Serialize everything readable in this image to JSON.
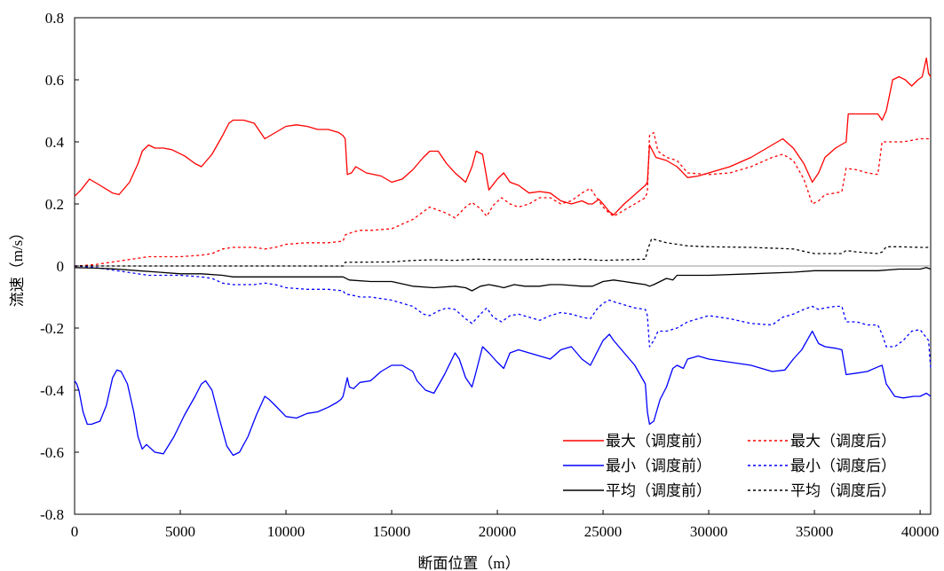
{
  "chart_data": {
    "type": "line",
    "xlabel": "断面位置（m）",
    "ylabel": "流速（m/s）",
    "xlim": [
      0,
      40500
    ],
    "ylim": [
      -0.8,
      0.8
    ],
    "xticks": [
      0,
      5000,
      10000,
      15000,
      20000,
      25000,
      30000,
      35000,
      40000
    ],
    "xtick_labels": [
      "0",
      "5000",
      "10000",
      "15000",
      "20000",
      "25000",
      "30000",
      "35000",
      "40000"
    ],
    "yticks": [
      -0.8,
      -0.6,
      -0.4,
      -0.2,
      0,
      0.2,
      0.4,
      0.6,
      0.8
    ],
    "ytick_labels": [
      "-0.8",
      "-0.6",
      "-0.4",
      "-0.2",
      "0",
      "0.2",
      "0.4",
      "0.6",
      "0.8"
    ],
    "grid": false,
    "zero_line": true,
    "legend_position": "bottom-right",
    "colors": {
      "red": "#ff0000",
      "blue": "#0000ff",
      "black": "#000000",
      "zero": "#999999"
    },
    "series": [
      {
        "name": "最大（调度前）",
        "color": "#ff0000",
        "dash": "solid",
        "x": [
          0,
          300,
          700,
          1200,
          1800,
          2100,
          2600,
          3000,
          3200,
          3500,
          3800,
          4200,
          4600,
          5200,
          5700,
          6000,
          6500,
          7000,
          7300,
          7500,
          8000,
          8500,
          9000,
          9500,
          10000,
          10500,
          11000,
          11500,
          12000,
          12500,
          12700,
          12800,
          12900,
          13100,
          13300,
          13800,
          14500,
          15000,
          15500,
          16000,
          16500,
          16800,
          17200,
          17600,
          18000,
          18500,
          18800,
          19000,
          19300,
          19600,
          20000,
          20300,
          20600,
          21000,
          21500,
          22000,
          22500,
          23000,
          23500,
          24000,
          24300,
          24500,
          24800,
          25000,
          25300,
          25500,
          26000,
          26500,
          27000,
          27100,
          27200,
          27500,
          28000,
          28500,
          29000,
          29500,
          30000,
          31000,
          32000,
          33000,
          33500,
          34000,
          34500,
          34900,
          35200,
          35500,
          36000,
          36500,
          36600,
          37000,
          38000,
          38200,
          38400,
          38700,
          39000,
          39300,
          39600,
          39900,
          40100,
          40300,
          40400,
          40500
        ],
        "y": [
          0.225,
          0.245,
          0.28,
          0.26,
          0.235,
          0.23,
          0.27,
          0.33,
          0.37,
          0.39,
          0.38,
          0.38,
          0.375,
          0.355,
          0.33,
          0.32,
          0.36,
          0.42,
          0.46,
          0.47,
          0.47,
          0.46,
          0.41,
          0.43,
          0.45,
          0.455,
          0.45,
          0.44,
          0.44,
          0.43,
          0.42,
          0.41,
          0.295,
          0.3,
          0.32,
          0.3,
          0.29,
          0.27,
          0.28,
          0.31,
          0.35,
          0.37,
          0.37,
          0.33,
          0.3,
          0.27,
          0.32,
          0.37,
          0.36,
          0.245,
          0.28,
          0.3,
          0.27,
          0.26,
          0.235,
          0.24,
          0.235,
          0.21,
          0.2,
          0.21,
          0.2,
          0.2,
          0.215,
          0.2,
          0.175,
          0.165,
          0.2,
          0.23,
          0.26,
          0.27,
          0.39,
          0.35,
          0.34,
          0.32,
          0.285,
          0.29,
          0.3,
          0.32,
          0.35,
          0.39,
          0.41,
          0.38,
          0.33,
          0.27,
          0.3,
          0.35,
          0.38,
          0.4,
          0.49,
          0.49,
          0.49,
          0.47,
          0.5,
          0.6,
          0.61,
          0.6,
          0.58,
          0.6,
          0.61,
          0.67,
          0.62,
          0.61
        ]
      },
      {
        "name": "最大（调度后）",
        "color": "#ff0000",
        "dash": "dotted",
        "x": [
          0,
          500,
          1000,
          1500,
          2000,
          2500,
          3000,
          3500,
          4000,
          5000,
          6000,
          6500,
          7000,
          7500,
          8000,
          8500,
          9000,
          9500,
          10000,
          11000,
          12000,
          12700,
          12800,
          13200,
          13500,
          14000,
          15000,
          16000,
          16500,
          16800,
          17200,
          17600,
          18000,
          18500,
          18800,
          19200,
          19500,
          19800,
          20200,
          20600,
          21000,
          21500,
          22000,
          22500,
          23000,
          23500,
          24000,
          24400,
          24700,
          25000,
          25300,
          25500,
          26000,
          26500,
          27000,
          27100,
          27200,
          27400,
          27600,
          28000,
          28500,
          29000,
          30000,
          31000,
          32000,
          33000,
          33500,
          34000,
          34500,
          34900,
          35200,
          35500,
          36000,
          36300,
          36500,
          37000,
          37500,
          38000,
          38200,
          38400,
          38800,
          39200,
          39600,
          40000,
          40400,
          40500
        ],
        "y": [
          0,
          0.002,
          0.005,
          0.01,
          0.015,
          0.02,
          0.025,
          0.03,
          0.03,
          0.03,
          0.035,
          0.04,
          0.055,
          0.06,
          0.06,
          0.06,
          0.055,
          0.06,
          0.07,
          0.075,
          0.075,
          0.08,
          0.1,
          0.11,
          0.115,
          0.115,
          0.12,
          0.15,
          0.175,
          0.19,
          0.18,
          0.17,
          0.155,
          0.19,
          0.205,
          0.185,
          0.16,
          0.195,
          0.22,
          0.2,
          0.19,
          0.2,
          0.22,
          0.22,
          0.2,
          0.21,
          0.235,
          0.25,
          0.22,
          0.19,
          0.17,
          0.16,
          0.18,
          0.2,
          0.22,
          0.24,
          0.42,
          0.43,
          0.37,
          0.35,
          0.34,
          0.3,
          0.295,
          0.3,
          0.32,
          0.35,
          0.36,
          0.34,
          0.28,
          0.2,
          0.21,
          0.23,
          0.235,
          0.24,
          0.315,
          0.31,
          0.3,
          0.295,
          0.4,
          0.4,
          0.4,
          0.4,
          0.405,
          0.41,
          0.41,
          0.41
        ]
      },
      {
        "name": "最小（调度前）",
        "color": "#0000ff",
        "dash": "solid",
        "x": [
          0,
          100,
          200,
          400,
          600,
          800,
          1200,
          1500,
          1800,
          2000,
          2200,
          2500,
          2800,
          3000,
          3200,
          3400,
          3800,
          4200,
          4700,
          5200,
          5700,
          6000,
          6200,
          6500,
          6800,
          7200,
          7500,
          7800,
          8200,
          8600,
          9000,
          9200,
          9500,
          10000,
          10500,
          11000,
          11500,
          12000,
          12400,
          12600,
          12700,
          12800,
          12900,
          13000,
          13200,
          13500,
          14000,
          14500,
          15000,
          15500,
          16000,
          16200,
          16600,
          17000,
          17500,
          18000,
          18200,
          18500,
          18800,
          19000,
          19300,
          19600,
          20000,
          20300,
          20600,
          21000,
          21500,
          22000,
          22500,
          23000,
          23500,
          24000,
          24400,
          24700,
          25000,
          25300,
          25500,
          26000,
          26500,
          27000,
          27100,
          27200,
          27400,
          27700,
          28000,
          28300,
          28500,
          28800,
          29000,
          29500,
          30000,
          31000,
          32000,
          33000,
          33600,
          34000,
          34400,
          34900,
          35200,
          35500,
          36000,
          36300,
          36500,
          37000,
          37500,
          38000,
          38200,
          38400,
          38800,
          39200,
          39700,
          40000,
          40300,
          40500
        ],
        "y": [
          -0.37,
          -0.38,
          -0.4,
          -0.47,
          -0.51,
          -0.51,
          -0.5,
          -0.45,
          -0.36,
          -0.335,
          -0.34,
          -0.38,
          -0.47,
          -0.55,
          -0.59,
          -0.575,
          -0.6,
          -0.605,
          -0.55,
          -0.48,
          -0.42,
          -0.38,
          -0.37,
          -0.4,
          -0.48,
          -0.58,
          -0.61,
          -0.6,
          -0.55,
          -0.48,
          -0.42,
          -0.43,
          -0.45,
          -0.485,
          -0.49,
          -0.475,
          -0.47,
          -0.455,
          -0.44,
          -0.43,
          -0.42,
          -0.39,
          -0.36,
          -0.39,
          -0.395,
          -0.375,
          -0.37,
          -0.34,
          -0.32,
          -0.32,
          -0.34,
          -0.37,
          -0.4,
          -0.41,
          -0.35,
          -0.28,
          -0.3,
          -0.36,
          -0.39,
          -0.34,
          -0.26,
          -0.28,
          -0.31,
          -0.33,
          -0.28,
          -0.27,
          -0.28,
          -0.29,
          -0.3,
          -0.27,
          -0.26,
          -0.3,
          -0.32,
          -0.28,
          -0.24,
          -0.22,
          -0.24,
          -0.28,
          -0.32,
          -0.38,
          -0.47,
          -0.51,
          -0.5,
          -0.43,
          -0.39,
          -0.33,
          -0.32,
          -0.33,
          -0.3,
          -0.29,
          -0.3,
          -0.31,
          -0.32,
          -0.34,
          -0.335,
          -0.3,
          -0.27,
          -0.21,
          -0.25,
          -0.26,
          -0.265,
          -0.27,
          -0.35,
          -0.345,
          -0.34,
          -0.325,
          -0.32,
          -0.38,
          -0.42,
          -0.425,
          -0.42,
          -0.42,
          -0.41,
          -0.42
        ]
      },
      {
        "name": "最小（调度后）",
        "color": "#0000ff",
        "dash": "dotted",
        "x": [
          0,
          500,
          1000,
          1500,
          2000,
          2500,
          3000,
          3500,
          4000,
          5000,
          6000,
          6500,
          7000,
          7500,
          8000,
          8500,
          9000,
          9500,
          10000,
          11000,
          12000,
          12700,
          12800,
          13200,
          13500,
          14000,
          15000,
          16000,
          16500,
          16800,
          17200,
          17600,
          18000,
          18500,
          18800,
          19200,
          19500,
          19800,
          20200,
          20600,
          21000,
          21500,
          22000,
          22500,
          23000,
          23500,
          24000,
          24400,
          24700,
          25000,
          25300,
          25500,
          26000,
          26500,
          27000,
          27100,
          27200,
          27400,
          27600,
          28000,
          28500,
          29000,
          30000,
          31000,
          32000,
          33000,
          33500,
          34000,
          34500,
          34900,
          35200,
          35500,
          36000,
          36300,
          36500,
          37000,
          37500,
          38000,
          38200,
          38400,
          38800,
          39200,
          39600,
          40000,
          40400,
          40500
        ],
        "y": [
          0,
          -0.002,
          -0.005,
          -0.01,
          -0.015,
          -0.02,
          -0.025,
          -0.03,
          -0.03,
          -0.03,
          -0.035,
          -0.04,
          -0.055,
          -0.06,
          -0.06,
          -0.06,
          -0.055,
          -0.06,
          -0.07,
          -0.075,
          -0.075,
          -0.08,
          -0.09,
          -0.095,
          -0.1,
          -0.1,
          -0.11,
          -0.13,
          -0.155,
          -0.16,
          -0.145,
          -0.135,
          -0.14,
          -0.17,
          -0.185,
          -0.155,
          -0.135,
          -0.165,
          -0.18,
          -0.16,
          -0.155,
          -0.165,
          -0.175,
          -0.16,
          -0.15,
          -0.155,
          -0.165,
          -0.17,
          -0.14,
          -0.12,
          -0.11,
          -0.115,
          -0.125,
          -0.135,
          -0.14,
          -0.16,
          -0.26,
          -0.24,
          -0.21,
          -0.21,
          -0.2,
          -0.18,
          -0.16,
          -0.17,
          -0.185,
          -0.19,
          -0.165,
          -0.155,
          -0.14,
          -0.13,
          -0.14,
          -0.135,
          -0.13,
          -0.13,
          -0.18,
          -0.18,
          -0.19,
          -0.19,
          -0.22,
          -0.26,
          -0.26,
          -0.24,
          -0.21,
          -0.205,
          -0.24,
          -0.33
        ]
      },
      {
        "name": "平均（调度前）",
        "color": "#000000",
        "dash": "solid",
        "x": [
          0,
          500,
          1000,
          2000,
          3000,
          4000,
          5000,
          6000,
          7000,
          7500,
          8000,
          9000,
          10000,
          11000,
          12000,
          12700,
          13000,
          14000,
          15000,
          16000,
          17000,
          18000,
          18500,
          18800,
          19200,
          19600,
          20000,
          20300,
          20800,
          21300,
          22000,
          22500,
          23000,
          24000,
          24500,
          25000,
          25500,
          26000,
          26500,
          27000,
          27200,
          27400,
          28000,
          28300,
          28500,
          29000,
          30000,
          32000,
          34000,
          35000,
          36000,
          37000,
          38000,
          39000,
          40000,
          40300,
          40500
        ],
        "y": [
          -0.005,
          -0.006,
          -0.007,
          -0.01,
          -0.015,
          -0.02,
          -0.025,
          -0.025,
          -0.03,
          -0.035,
          -0.035,
          -0.035,
          -0.035,
          -0.035,
          -0.035,
          -0.035,
          -0.045,
          -0.05,
          -0.05,
          -0.065,
          -0.07,
          -0.065,
          -0.07,
          -0.08,
          -0.065,
          -0.06,
          -0.065,
          -0.07,
          -0.06,
          -0.065,
          -0.065,
          -0.06,
          -0.06,
          -0.065,
          -0.065,
          -0.05,
          -0.045,
          -0.05,
          -0.055,
          -0.06,
          -0.065,
          -0.06,
          -0.04,
          -0.045,
          -0.03,
          -0.03,
          -0.03,
          -0.025,
          -0.02,
          -0.015,
          -0.015,
          -0.015,
          -0.015,
          -0.01,
          -0.01,
          -0.005,
          -0.01
        ]
      },
      {
        "name": "平均（调度后）",
        "color": "#000000",
        "dash": "dotted",
        "x": [
          0,
          5000,
          10000,
          12700,
          12800,
          15000,
          16000,
          17000,
          18000,
          19000,
          20000,
          21000,
          22000,
          23000,
          24000,
          25000,
          26000,
          27000,
          27100,
          27300,
          28000,
          28500,
          29000,
          30000,
          32000,
          34000,
          35000,
          36300,
          36500,
          37000,
          38000,
          38200,
          38400,
          39000,
          40000,
          40500
        ],
        "y": [
          0,
          0,
          0,
          0,
          0.012,
          0.013,
          0.018,
          0.02,
          0.018,
          0.022,
          0.02,
          0.02,
          0.022,
          0.02,
          0.022,
          0.018,
          0.02,
          0.022,
          0.05,
          0.088,
          0.075,
          0.07,
          0.065,
          0.062,
          0.06,
          0.055,
          0.04,
          0.04,
          0.05,
          0.045,
          0.04,
          0.045,
          0.062,
          0.062,
          0.06,
          0.06
        ]
      }
    ]
  }
}
